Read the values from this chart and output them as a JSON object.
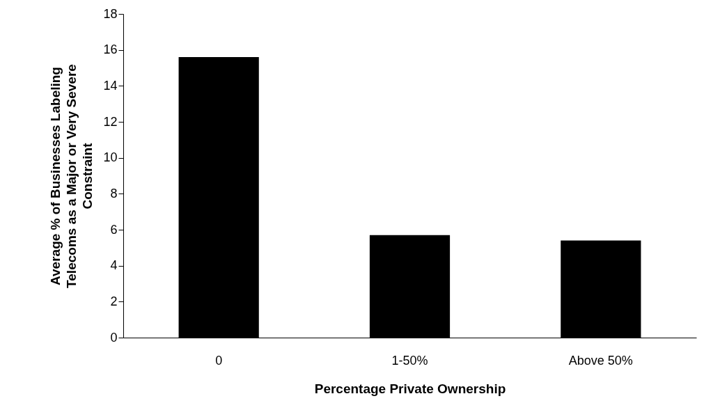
{
  "chart_data": {
    "type": "bar",
    "xlabel": "Percentage Private Ownership",
    "ylabel": "Average % of Businesses Labeling Telecoms as a Major or Very Severe Constraint",
    "categories": [
      "0",
      "1-50%",
      "Above 50%"
    ],
    "values": [
      15.6,
      5.7,
      5.4
    ],
    "color": "#000000",
    "ylim": [
      0,
      18
    ],
    "yticks": [
      0,
      2,
      4,
      6,
      8,
      10,
      12,
      14,
      16,
      18
    ],
    "grid": false
  }
}
